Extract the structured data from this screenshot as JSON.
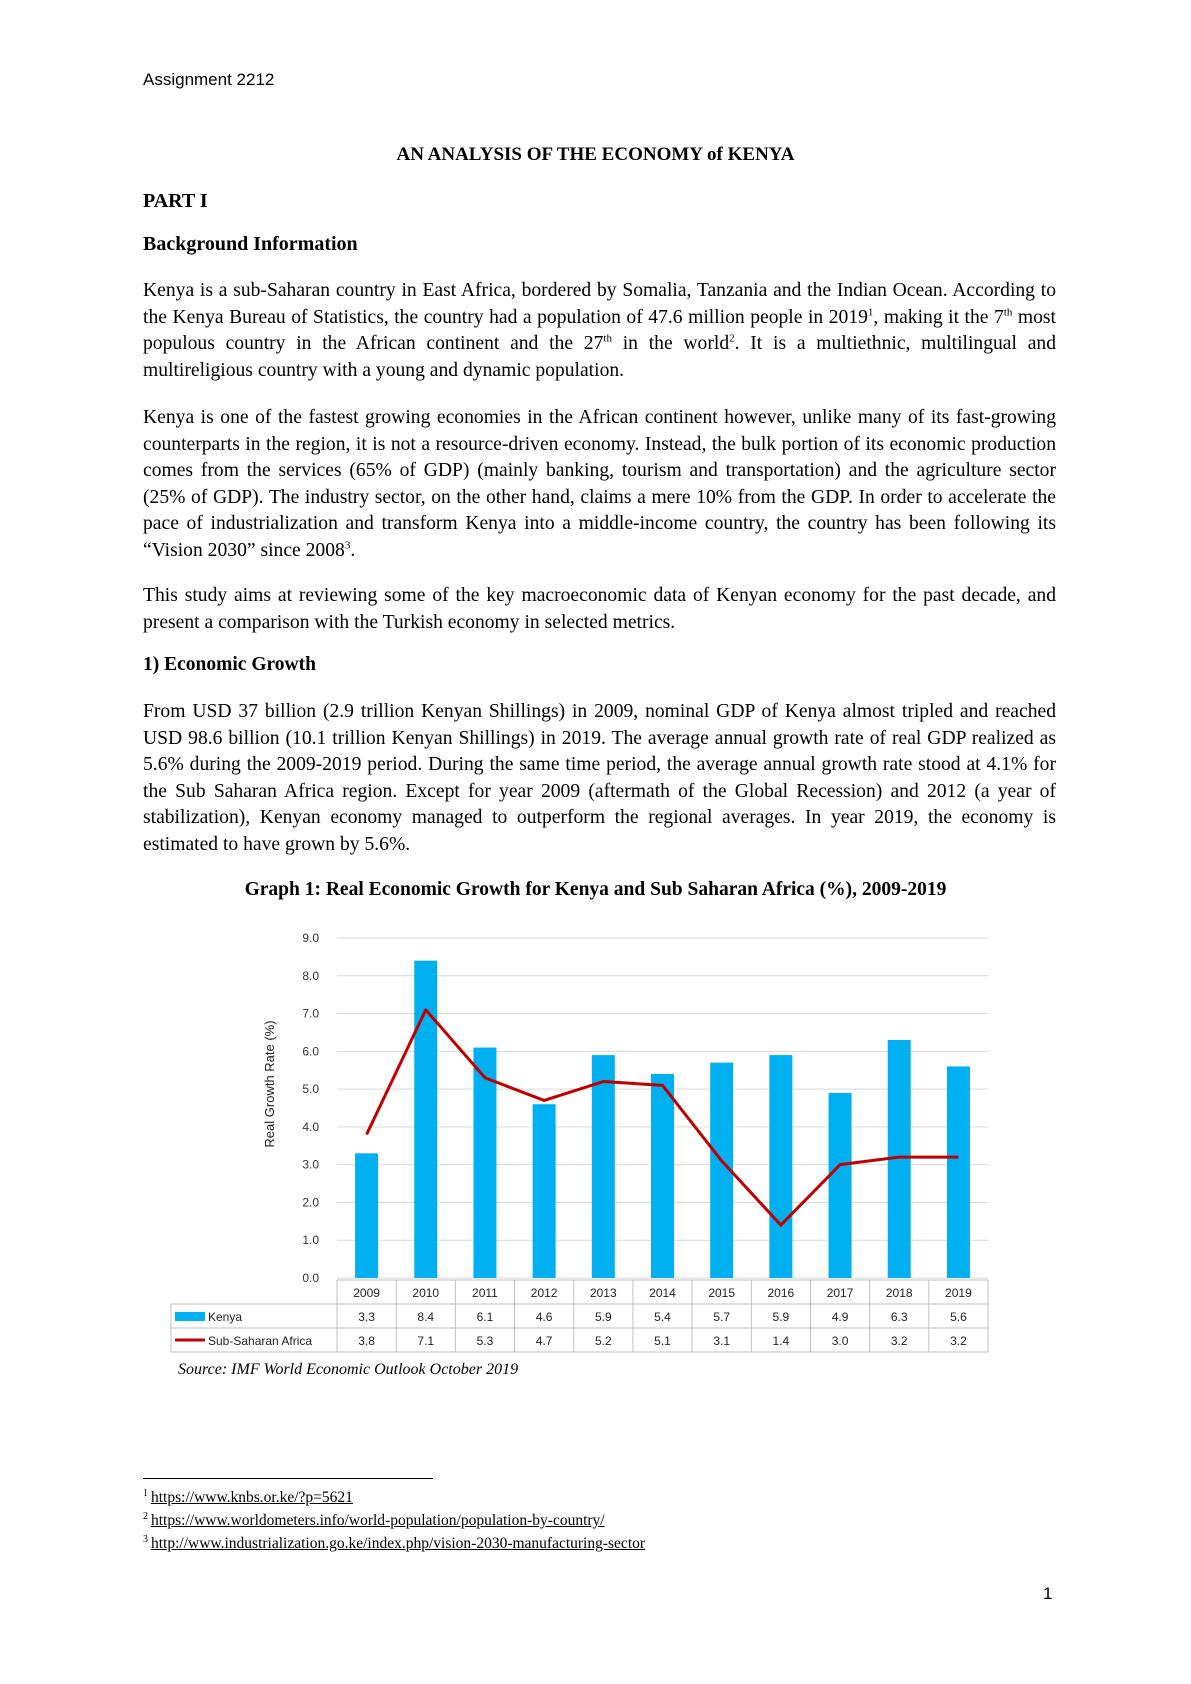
{
  "header": "Assignment 2212",
  "title": "AN ANALYSIS OF THE ECONOMY of KENYA",
  "part": "PART I",
  "section_background": "Background Information",
  "p1": {
    "a": "Kenya is a sub-Saharan country in East Africa, bordered by Somalia, Tanzania and the Indian Ocean. According to the Kenya Bureau of Statistics, the country had a population of 47.6 million people in 2019",
    "sup1": "1",
    "b": ", making it the 7",
    "sup_th1": "th",
    "c": " most populous country in the African continent and the 27",
    "sup_th2": "th",
    "d": " in the world",
    "sup2": "2",
    "e": ". It is a multiethnic, multilingual and multireligious country with a young and dynamic population."
  },
  "p2": {
    "a": "Kenya is one of the fastest growing economies in the African continent however, unlike many of its fast-growing counterparts in the region, it is not a resource-driven economy. Instead, the bulk portion of its economic production comes from the services (65% of GDP) (mainly banking, tourism and transportation) and the agriculture sector (25% of GDP). The industry sector, on the other hand, claims a mere 10% from the GDP. In order to accelerate the pace of industrialization and transform Kenya into a middle-income country, the country has been following its “Vision 2030” since 2008",
    "sup3": "3",
    "b": "."
  },
  "p3": "This study aims at reviewing some of the key macroeconomic data of Kenyan economy for the past decade, and present a comparison with the Turkish economy in selected metrics.",
  "section_growth": "1) Economic Growth",
  "p4": "From USD 37 billion (2.9 trillion Kenyan Shillings) in 2009, nominal GDP of Kenya almost tripled and reached USD 98.6 billion (10.1 trillion Kenyan Shillings) in 2019. The average annual growth rate of real GDP realized as 5.6% during the 2009-2019 period. During the same time period, the average annual growth rate stood at 4.1% for the Sub Saharan Africa region. Except for year 2009 (aftermath of the Global Recession) and 2012 (a year of stabilization), Kenyan economy managed to outperform the regional averages. In year 2019, the economy is estimated to have grown by 5.6%.",
  "graph_title": "Graph 1: Real Economic Growth for Kenya and Sub Saharan Africa (%), 2009-2019",
  "chart_data": {
    "type": "bar",
    "categories": [
      "2009",
      "2010",
      "2011",
      "2012",
      "2013",
      "2014",
      "2015",
      "2016",
      "2017",
      "2018",
      "2019"
    ],
    "series": [
      {
        "name": "Kenya",
        "type": "bar",
        "color": "#00b0f0",
        "values": [
          3.3,
          8.4,
          6.1,
          4.6,
          5.9,
          5.4,
          5.7,
          5.9,
          4.9,
          6.3,
          5.6
        ],
        "labels": [
          "3.3",
          "8.4",
          "6.1",
          "4.6",
          "5.9",
          "5.4",
          "5.7",
          "5.9",
          "4.9",
          "6.3",
          "5.6"
        ]
      },
      {
        "name": "Sub-Saharan Africa",
        "type": "line",
        "color": "#c00000",
        "values": [
          3.8,
          7.1,
          5.3,
          4.7,
          5.2,
          5.1,
          3.1,
          1.4,
          3.0,
          3.2,
          3.2
        ],
        "labels": [
          "3.8",
          "7.1",
          "5.3",
          "4.7",
          "5.2",
          "5.1",
          "3.1",
          "1.4",
          "3.0",
          "3.2",
          "3.2"
        ]
      }
    ],
    "ylabel": "Real Growth Rate (%)",
    "ylim": [
      0,
      9
    ],
    "yticks": [
      "0.0",
      "1.0",
      "2.0",
      "3.0",
      "4.0",
      "5.0",
      "6.0",
      "7.0",
      "8.0",
      "9.0"
    ],
    "grid": true,
    "legend": "data-table"
  },
  "source": "Source: IMF World Economic Outlook October 2019",
  "footnotes": [
    {
      "num": "1",
      "text": "https://www.knbs.or.ke/?p=5621"
    },
    {
      "num": "2",
      "text": "https://www.worldometers.info/world-population/population-by-country/"
    },
    {
      "num": "3",
      "text": "http://www.industrialization.go.ke/index.php/vision-2030-manufacturing-sector"
    }
  ],
  "page_number": "1"
}
